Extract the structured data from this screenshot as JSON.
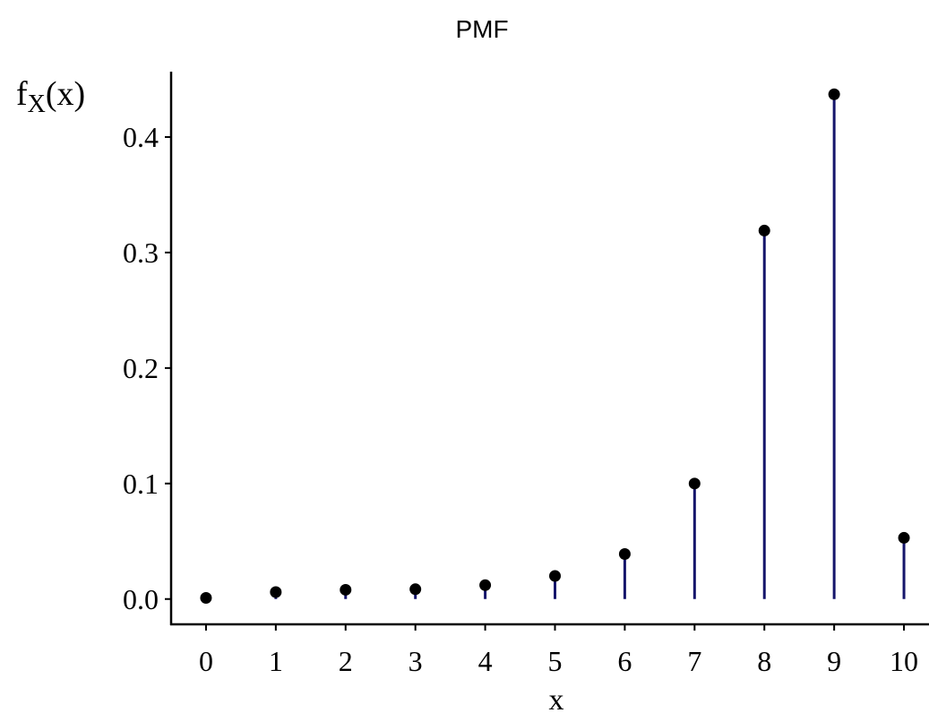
{
  "chart_data": {
    "type": "stem",
    "title": "PMF",
    "xlabel": "x",
    "ylabel": {
      "base": "f",
      "sub": "X",
      "arg": "(x)"
    },
    "x": [
      0,
      1,
      2,
      3,
      4,
      5,
      6,
      7,
      8,
      9,
      10
    ],
    "values": [
      0.001,
      0.006,
      0.008,
      0.0085,
      0.012,
      0.02,
      0.039,
      0.1,
      0.319,
      0.437,
      0.053
    ],
    "stem_color": "#15156b",
    "point_color": "#000000",
    "xlim": [
      -0.5,
      10.5
    ],
    "xticks": [
      0,
      1,
      2,
      3,
      4,
      5,
      6,
      7,
      8,
      9,
      10
    ],
    "ylim": [
      -0.0219,
      0.4566
    ],
    "yticks": [
      {
        "value": 0,
        "label": "0.0"
      },
      0.1,
      0.2,
      0.3,
      0.4
    ],
    "grid": false
  }
}
